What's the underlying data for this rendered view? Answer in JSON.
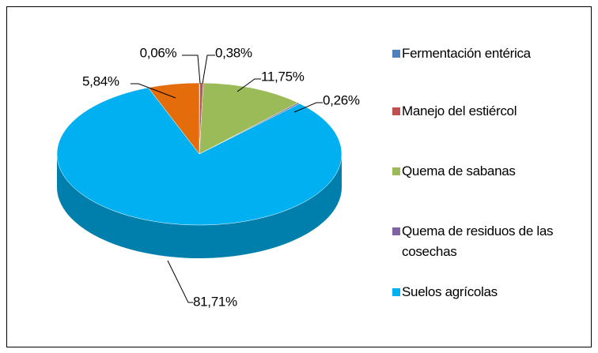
{
  "chart_data": {
    "type": "pie",
    "categories": [
      "Fermentación entérica",
      "Manejo del estiércol",
      "Quema de sabanas",
      "Quema de residuos de las cosechas",
      "Suelos agrícolas",
      null
    ],
    "values": [
      0.06,
      0.38,
      11.75,
      0.26,
      81.71,
      5.84
    ],
    "value_labels": [
      "0,06%",
      "0,38%",
      "11,75%",
      "0,26%",
      "81,71%",
      "5,84%"
    ],
    "colors": [
      "#4f81bd",
      "#c0504d",
      "#9bbb59",
      "#8064a2",
      "#00b0f0",
      "#e46c0a"
    ],
    "legend": "right"
  }
}
